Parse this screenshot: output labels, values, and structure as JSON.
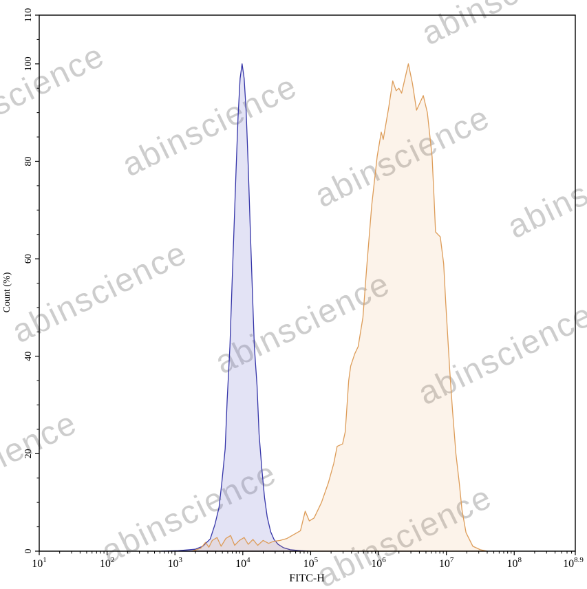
{
  "figure": {
    "watermark_text": "abinscience"
  },
  "chart_data": {
    "type": "area",
    "subtype": "flow-cytometry-overlay-histogram",
    "title": "",
    "xlabel": "FITC-H",
    "ylabel": "Count (%)",
    "x_scale": "log10",
    "x_range_exponents": [
      1,
      8.9
    ],
    "x_tick_labels": [
      "10^1",
      "10^2",
      "10^3",
      "10^4",
      "10^5",
      "10^6",
      "10^7",
      "10^8",
      "10^8.9"
    ],
    "x_tick_exponents": [
      1,
      2,
      3,
      4,
      5,
      6,
      7,
      8,
      8.9
    ],
    "ylim": [
      0,
      110
    ],
    "y_tick_values": [
      0,
      20,
      40,
      60,
      80,
      100,
      110
    ],
    "y_minor_step": 5,
    "grid": false,
    "legend": "none",
    "axis_color": "#000000",
    "series": [
      {
        "name": "blue-narrow-peak",
        "stroke": "#3434a8",
        "fill": "rgba(115,115,205,0.20)",
        "peak_exponent": 3.99,
        "peak_percent": 100,
        "points": [
          [
            2.8,
            0
          ],
          [
            3.05,
            0.1
          ],
          [
            3.3,
            0.4
          ],
          [
            3.41,
            1
          ],
          [
            3.52,
            2.5
          ],
          [
            3.59,
            5.5
          ],
          [
            3.65,
            9
          ],
          [
            3.69,
            14
          ],
          [
            3.74,
            21
          ],
          [
            3.77,
            31
          ],
          [
            3.81,
            42
          ],
          [
            3.84,
            54
          ],
          [
            3.87,
            66
          ],
          [
            3.9,
            78
          ],
          [
            3.93,
            89
          ],
          [
            3.96,
            97
          ],
          [
            3.99,
            100
          ],
          [
            4.02,
            97
          ],
          [
            4.05,
            90
          ],
          [
            4.08,
            79
          ],
          [
            4.11,
            66
          ],
          [
            4.14,
            54
          ],
          [
            4.17,
            42
          ],
          [
            4.21,
            34
          ],
          [
            4.24,
            24
          ],
          [
            4.28,
            17
          ],
          [
            4.32,
            11
          ],
          [
            4.36,
            7
          ],
          [
            4.41,
            4
          ],
          [
            4.46,
            2.4
          ],
          [
            4.52,
            1.4
          ],
          [
            4.6,
            0.7
          ],
          [
            4.7,
            0.3
          ],
          [
            4.85,
            0.1
          ],
          [
            5.0,
            0
          ]
        ]
      },
      {
        "name": "orange-broad-peak",
        "stroke": "#dd9c58",
        "fill": "rgba(224,148,66,0.11)",
        "peak_exponent": 6.44,
        "peak_percent": 100,
        "points": [
          [
            3.25,
            0
          ],
          [
            3.38,
            0.6
          ],
          [
            3.45,
            1.8
          ],
          [
            3.5,
            0.8
          ],
          [
            3.55,
            2.2
          ],
          [
            3.62,
            2.8
          ],
          [
            3.68,
            1
          ],
          [
            3.75,
            2.6
          ],
          [
            3.82,
            3.2
          ],
          [
            3.88,
            1.2
          ],
          [
            3.95,
            2.2
          ],
          [
            4.02,
            2.8
          ],
          [
            4.08,
            1.4
          ],
          [
            4.15,
            2.4
          ],
          [
            4.22,
            1.2
          ],
          [
            4.3,
            2.2
          ],
          [
            4.38,
            1.6
          ],
          [
            4.45,
            2.0
          ],
          [
            4.55,
            2.2
          ],
          [
            4.65,
            2.6
          ],
          [
            4.75,
            3.4
          ],
          [
            4.85,
            4.2
          ],
          [
            4.92,
            8.2
          ],
          [
            4.98,
            6.2
          ],
          [
            5.05,
            6.8
          ],
          [
            5.16,
            10
          ],
          [
            5.26,
            14
          ],
          [
            5.34,
            18
          ],
          [
            5.39,
            21.5
          ],
          [
            5.47,
            22
          ],
          [
            5.51,
            24.5
          ],
          [
            5.56,
            35
          ],
          [
            5.59,
            38
          ],
          [
            5.65,
            40.5
          ],
          [
            5.7,
            42
          ],
          [
            5.77,
            48
          ],
          [
            5.83,
            59
          ],
          [
            5.9,
            71
          ],
          [
            5.98,
            81
          ],
          [
            6.04,
            86
          ],
          [
            6.07,
            84.5
          ],
          [
            6.15,
            91
          ],
          [
            6.21,
            96.5
          ],
          [
            6.26,
            94.5
          ],
          [
            6.3,
            95
          ],
          [
            6.34,
            94
          ],
          [
            6.44,
            100
          ],
          [
            6.5,
            96
          ],
          [
            6.56,
            90.5
          ],
          [
            6.61,
            92
          ],
          [
            6.66,
            93.5
          ],
          [
            6.72,
            90
          ],
          [
            6.79,
            81
          ],
          [
            6.82,
            72
          ],
          [
            6.84,
            65.5
          ],
          [
            6.91,
            64.5
          ],
          [
            6.96,
            59
          ],
          [
            6.99,
            51
          ],
          [
            7.05,
            37
          ],
          [
            7.09,
            29
          ],
          [
            7.14,
            20
          ],
          [
            7.19,
            14
          ],
          [
            7.23,
            8.5
          ],
          [
            7.29,
            3.8
          ],
          [
            7.39,
            1
          ],
          [
            7.5,
            0.3
          ],
          [
            7.6,
            0
          ]
        ]
      }
    ]
  }
}
